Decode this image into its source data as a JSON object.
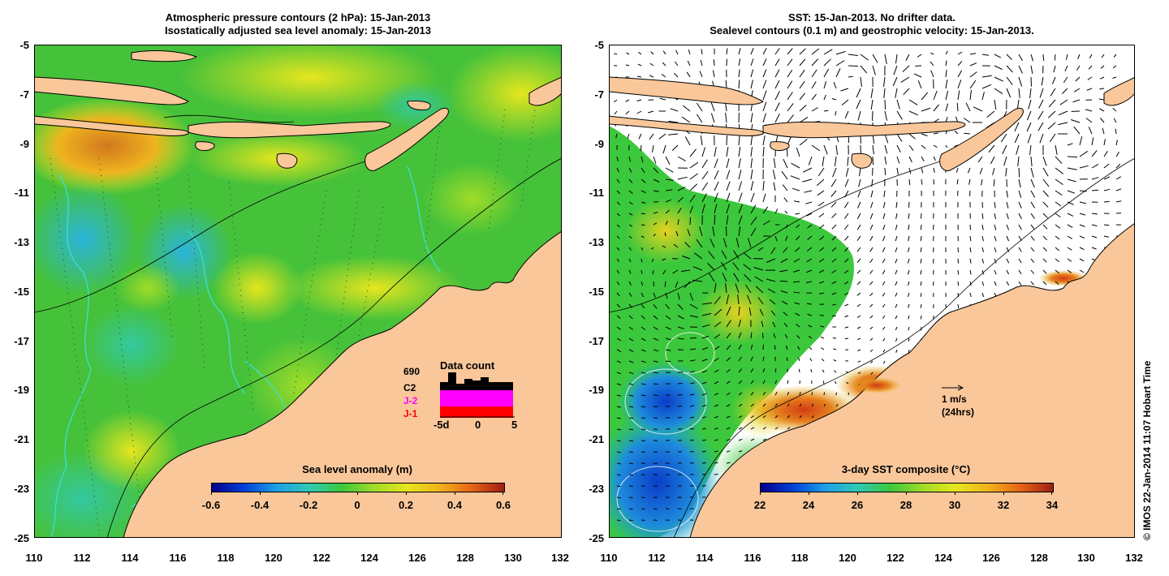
{
  "left_panel": {
    "title_line1": "Atmospheric pressure contours (2 hPa): 15-Jan-2013",
    "title_line2": "Isostatically adjusted sea level anomaly: 15-Jan-2013",
    "x_ticks": [
      "110",
      "112",
      "114",
      "116",
      "118",
      "120",
      "122",
      "124",
      "126",
      "128",
      "130",
      "132"
    ],
    "y_ticks": [
      "-5",
      "-7",
      "-9",
      "-11",
      "-13",
      "-15",
      "-17",
      "-19",
      "-21",
      "-23",
      "-25"
    ],
    "colorbar": {
      "title": "Sea level anomaly (m)",
      "labels": [
        "-0.6",
        "-0.4",
        "-0.2",
        "0",
        "0.2",
        "0.4",
        "0.6"
      ],
      "range": [
        -0.6,
        0.6
      ]
    },
    "data_count": {
      "title": "Data count",
      "total": "690",
      "series_labels": [
        {
          "name": "C2",
          "color": "#000000"
        },
        {
          "name": "J-2",
          "color": "#ff00ff"
        },
        {
          "name": "J-1",
          "color": "#ff0000"
        }
      ],
      "x_labels": [
        "-5d",
        "0",
        "5"
      ]
    }
  },
  "right_panel": {
    "title_line1": "SST: 15-Jan-2013. No drifter data.",
    "title_line2": "Sealevel contours (0.1 m) and geostrophic velocity: 15-Jan-2013.",
    "x_ticks": [
      "110",
      "112",
      "114",
      "116",
      "118",
      "120",
      "122",
      "124",
      "126",
      "128",
      "130",
      "132"
    ],
    "y_ticks": [
      "-5",
      "-7",
      "-9",
      "-11",
      "-13",
      "-15",
      "-17",
      "-19",
      "-21",
      "-23",
      "-25"
    ],
    "colorbar": {
      "title": "3-day SST composite (°C)",
      "labels": [
        "22",
        "24",
        "26",
        "28",
        "30",
        "32",
        "34"
      ],
      "range": [
        22,
        34
      ]
    },
    "scale_arrow": {
      "line1": "1 m/s",
      "line2": "(24hrs)"
    }
  },
  "credit": "© IMOS 22-Jan-2014 11:07 Hobart Time",
  "colors": {
    "land": "#f9c79a",
    "sea_green": "#4cc832",
    "contour_cyan": "#3ce0e0"
  }
}
